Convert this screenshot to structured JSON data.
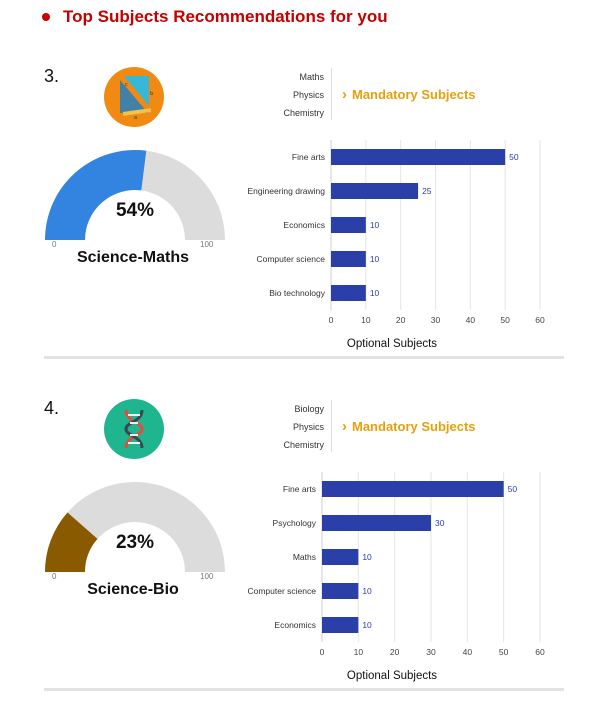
{
  "header": {
    "title": "Top Subjects Recommendations for you"
  },
  "recommendations": [
    {
      "rank": "3.",
      "stream": "Science-Maths",
      "icon": "geometry-triangle-icon",
      "score": 54,
      "score_label": "54%",
      "gauge_min": "0",
      "gauge_max": "100",
      "gauge_color": "#3384e0",
      "mandatory_subjects": [
        "Maths",
        "Physics",
        "Chemistry"
      ],
      "mandatory_title": "Mandatory Subjects"
    },
    {
      "rank": "4.",
      "stream": "Science-Bio",
      "icon": "dna-icon",
      "score": 23,
      "score_label": "23%",
      "gauge_min": "0",
      "gauge_max": "100",
      "gauge_color": "#8a5a00",
      "mandatory_subjects": [
        "Biology",
        "Physics",
        "Chemistry"
      ],
      "mandatory_title": "Mandatory Subjects"
    }
  ],
  "chart_data": [
    {
      "type": "bar",
      "orientation": "horizontal",
      "categories": [
        "Fine arts",
        "Engineering drawing",
        "Economics",
        "Computer science",
        "Bio technology"
      ],
      "values": [
        50,
        25,
        10,
        10,
        10
      ],
      "xlabel": "Optional Subjects",
      "xlim": [
        0,
        60
      ],
      "xticks": [
        0,
        10,
        20,
        30,
        40,
        50,
        60
      ],
      "grid": true,
      "bar_color": "#2a3fa8"
    },
    {
      "type": "bar",
      "orientation": "horizontal",
      "categories": [
        "Fine arts",
        "Psychology",
        "Maths",
        "Computer science",
        "Economics"
      ],
      "values": [
        50,
        30,
        10,
        10,
        10
      ],
      "xlabel": "Optional Subjects",
      "xlim": [
        0,
        60
      ],
      "xticks": [
        0,
        10,
        20,
        30,
        40,
        50,
        60
      ],
      "grid": true,
      "bar_color": "#2a3fa8"
    }
  ]
}
